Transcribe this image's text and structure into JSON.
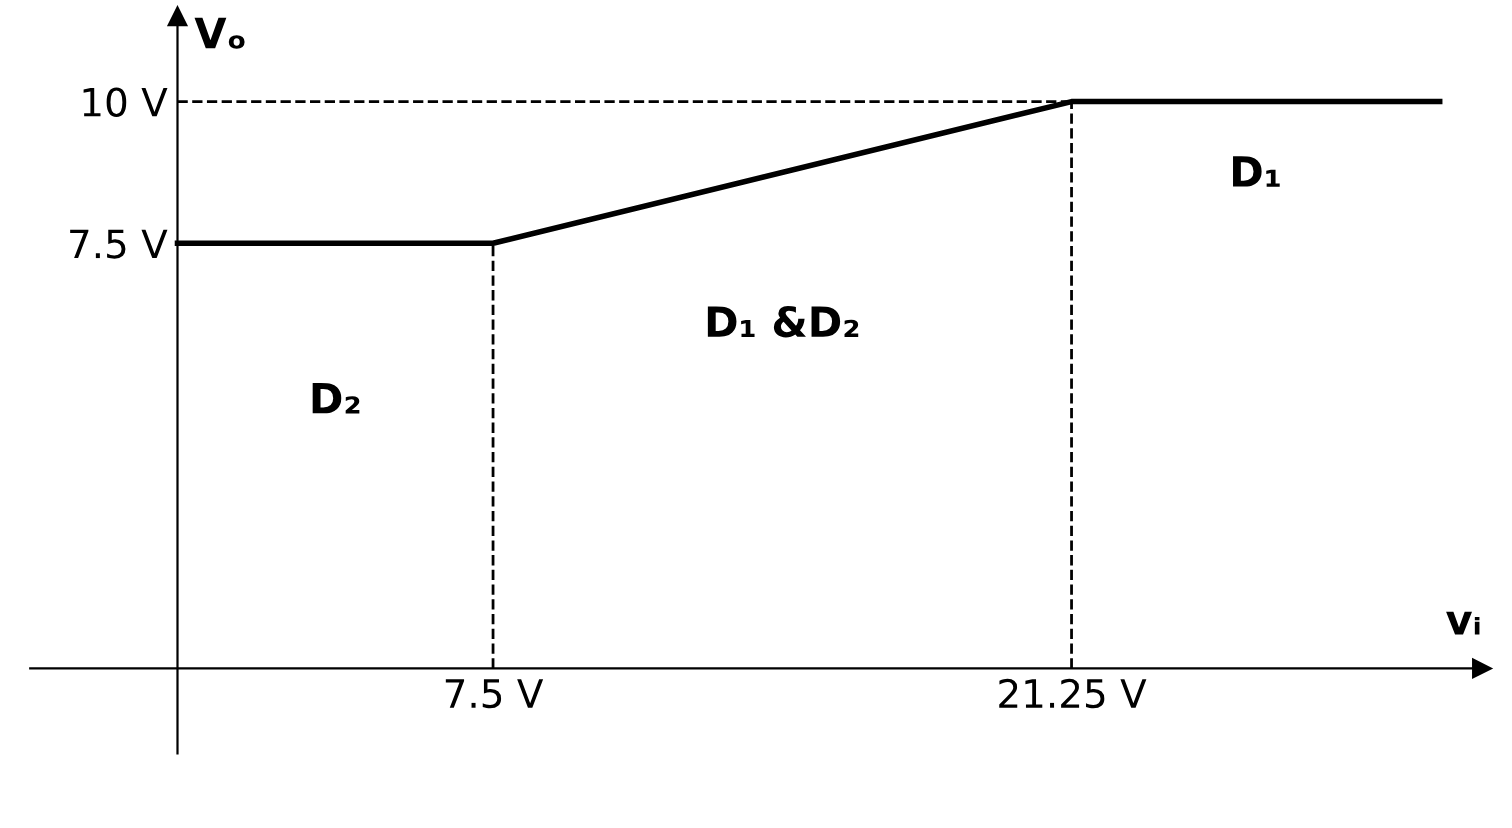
{
  "chart_data": {
    "type": "line",
    "xlabel": "vᵢ",
    "ylabel": "Vₒ",
    "x": [
      0,
      7.5,
      21.25,
      30
    ],
    "series": [
      {
        "color": "#000000",
        "values": [
          7.5,
          7.5,
          10,
          10
        ]
      }
    ],
    "xlim": [
      -3.5,
      31
    ],
    "ylim": [
      -1.5,
      11.5
    ],
    "xticks": [
      {
        "value": 7.5,
        "label": "7.5 V"
      },
      {
        "value": 21.25,
        "label": "21.25 V"
      }
    ],
    "yticks": [
      {
        "value": 7.5,
        "label": "7.5 V"
      },
      {
        "value": 10,
        "label": "10 V"
      }
    ],
    "ref_lines": [
      {
        "axis": "y",
        "value": 10,
        "line_style": "dashed"
      },
      {
        "axis": "x",
        "value": 7.5,
        "line_style": "dashed"
      },
      {
        "axis": "x",
        "value": 21.25,
        "line_style": "dashed"
      }
    ],
    "annotations": [
      "D₂",
      "D₁ &D₂",
      "D₁"
    ],
    "grid": false,
    "legend": false,
    "line_style": "solid",
    "marker": "none"
  }
}
